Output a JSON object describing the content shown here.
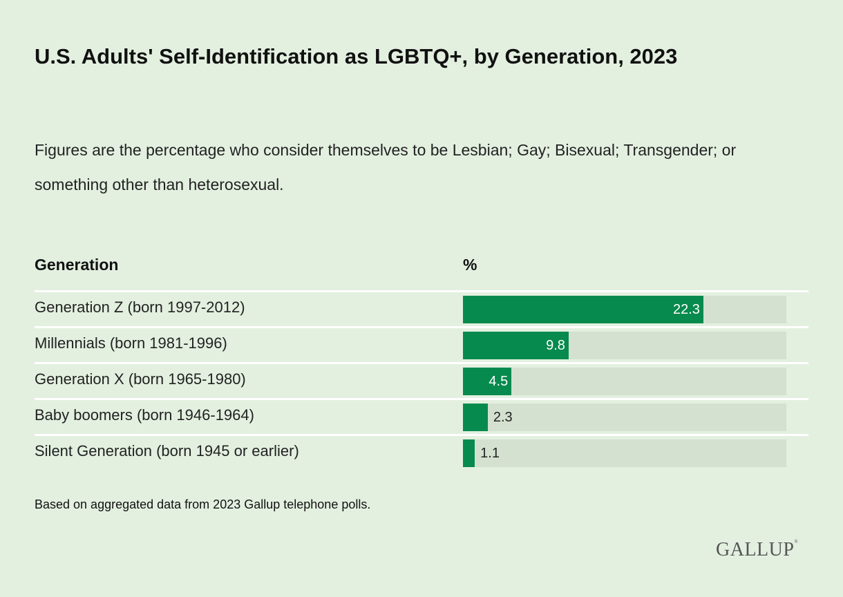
{
  "title": "U.S. Adults' Self-Identification as LGBTQ+, by Generation, 2023",
  "subtitle": "Figures are the percentage who consider themselves to be Lesbian; Gay; Bisexual; Transgender; or something other than heterosexual.",
  "note": "Based on aggregated data from 2023 Gallup telephone polls.",
  "logo": "GALLUP",
  "colors": {
    "background": "#e3f0e0",
    "bar": "#078a4d",
    "track": "#d5e1d0"
  },
  "chart_data": {
    "type": "bar",
    "orientation": "horizontal",
    "column_headers": [
      "Generation",
      "%"
    ],
    "categories": [
      "Generation Z (born 1997-2012)",
      "Millennials (born 1981-1996)",
      "Generation X (born 1965-1980)",
      "Baby boomers (born 1946-1964)",
      "Silent Generation (born 1945 or earlier)"
    ],
    "values": [
      22.3,
      9.8,
      4.5,
      2.3,
      1.1
    ],
    "xlim": [
      0,
      30
    ],
    "grid": false
  }
}
